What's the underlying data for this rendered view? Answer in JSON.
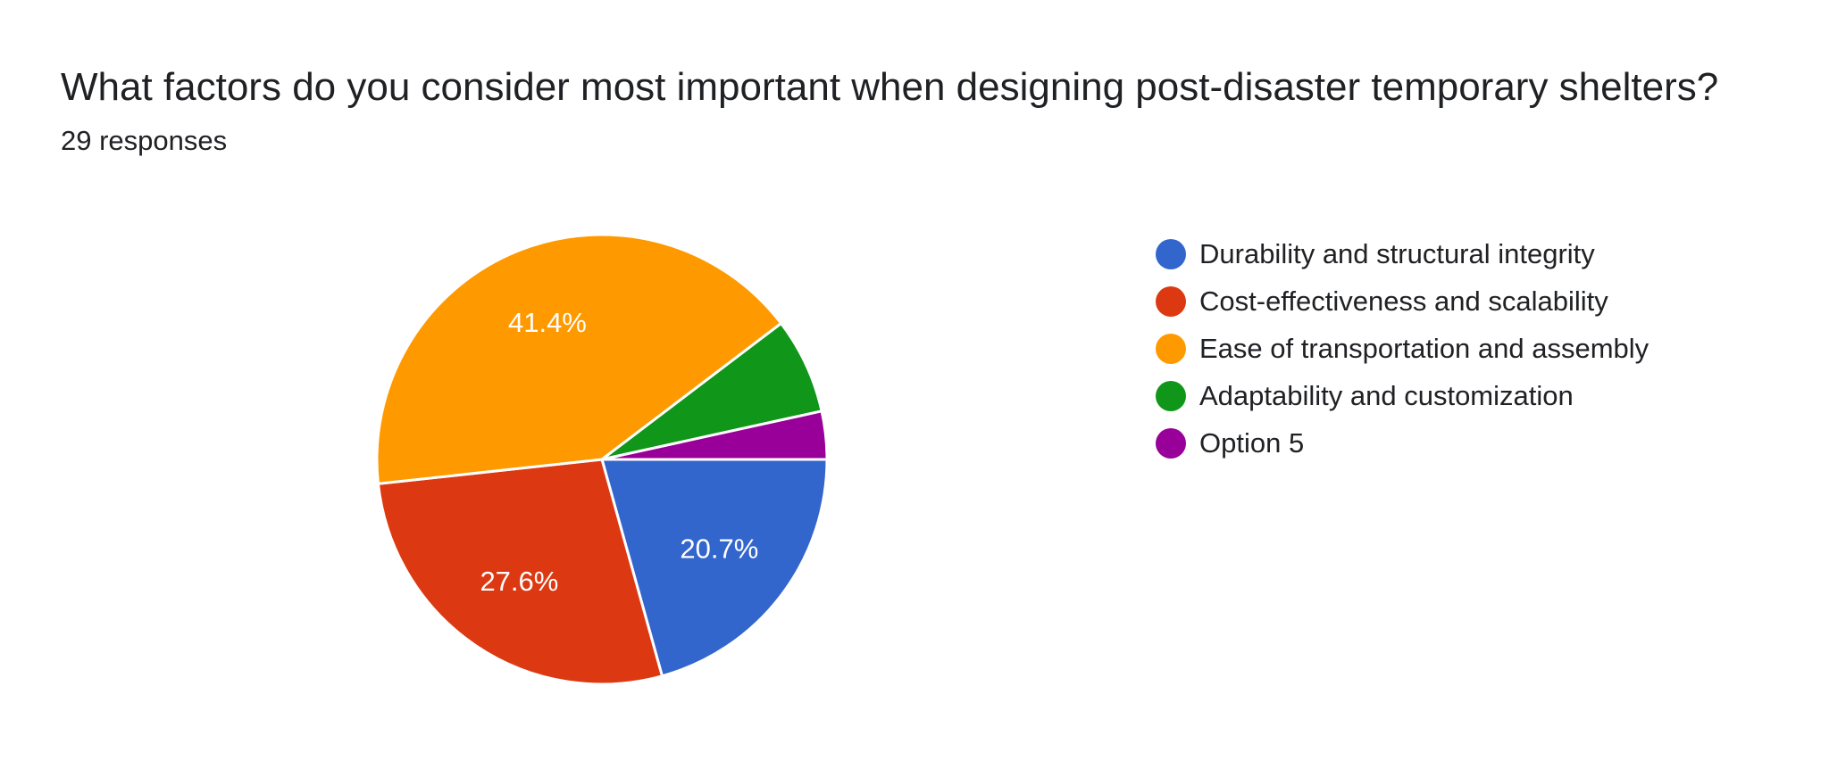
{
  "question": {
    "title": "What factors do you consider most important when designing post-disaster temporary shelters?",
    "response_count": "29 responses"
  },
  "chart_data": {
    "type": "pie",
    "categories": [
      "Durability and structural integrity",
      "Cost-effectiveness and scalability",
      "Ease of transportation and assembly",
      "Adaptability and customization",
      "Option 5"
    ],
    "values": [
      6,
      8,
      12,
      2,
      1
    ],
    "data_labels": [
      "20.7%",
      "27.6%",
      "41.4%",
      "",
      ""
    ],
    "colors": [
      "#3366cc",
      "#dc3912",
      "#ff9900",
      "#109618",
      "#990099"
    ],
    "legend_position": "right",
    "start": "3 o'clock",
    "direction": "clockwise"
  }
}
